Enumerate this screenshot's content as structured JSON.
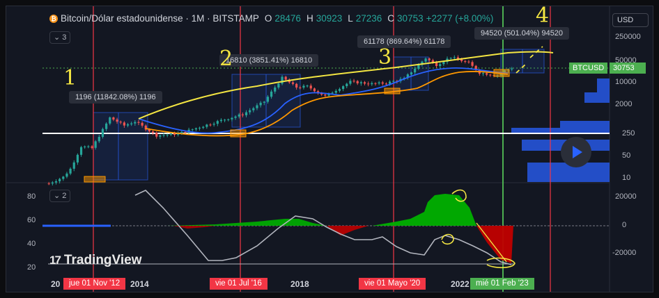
{
  "header": {
    "coin_glyph": "₿",
    "title": "Bitcoin/Dólar estadounidense · 1M · BITSTAMP",
    "o_label": "O",
    "o_val": "28476",
    "h_label": "H",
    "h_val": "30923",
    "l_label": "L",
    "l_val": "27236",
    "c_label": "C",
    "c_val": "30753",
    "change": "+2277 (+8.00%)"
  },
  "currency": "USD",
  "price_panel_collapse": "3",
  "osc_panel_collapse": "2",
  "symbol_tag": {
    "name": "BTCUSD",
    "price": "30753"
  },
  "callouts": [
    "1196 (11842.08%) 1196",
    "16810 (3851.41%) 16810",
    "61178 (869.64%) 61178",
    "94520 (501.04%) 94520"
  ],
  "handwritten_numbers": [
    "1",
    "2",
    "3",
    "4"
  ],
  "time_tags": [
    {
      "label": "jue 01 Nov '12",
      "color": "red"
    },
    {
      "label": "vie 01 Jul '16",
      "color": "red"
    },
    {
      "label": "vie 01 Mayo '20",
      "color": "red"
    },
    {
      "label": "mié 01 Feb '23",
      "color": "green"
    }
  ],
  "year_labels": [
    "20",
    "2014",
    "2018",
    "2022"
  ],
  "logo": {
    "mark": "17",
    "text": "TradingView"
  },
  "chart_data": [
    {
      "type": "line",
      "name": "BTCUSD monthly price (log scale)",
      "y_scale": "log",
      "y_ticks": [
        "250000",
        "50000",
        "10000",
        "2000",
        "250",
        "50",
        "10"
      ],
      "x_ticks": [
        "20",
        "2014",
        "2018",
        "2022"
      ],
      "x": [
        2012.5,
        2012.83,
        2013.0,
        2013.25,
        2013.5,
        2013.83,
        2013.92,
        2014.25,
        2014.5,
        2015.0,
        2015.5,
        2016.0,
        2016.5,
        2017.0,
        2017.5,
        2017.92,
        2018.25,
        2018.5,
        2018.92,
        2019.5,
        2020.0,
        2020.33,
        2020.75,
        2021.25,
        2021.5,
        2021.83,
        2022.25,
        2022.5,
        2022.92,
        2023.08,
        2023.33
      ],
      "close": [
        7,
        11,
        20,
        100,
        90,
        500,
        800,
        450,
        600,
        220,
        250,
        400,
        650,
        1000,
        2500,
        14000,
        7000,
        7500,
        3700,
        10500,
        9000,
        9500,
        13000,
        57000,
        35000,
        61000,
        40000,
        20000,
        16500,
        23000,
        30753
      ],
      "horizontal_line": 280,
      "annotations": [
        "1196 (11842.08%) 1196",
        "16810 (3851.41%) 16810",
        "61178 (869.64%) 61178",
        "94520 (501.04%) 94520"
      ],
      "colors": {
        "up": "#26a69a",
        "down": "#ef5350",
        "blue_ma": "#2962ff",
        "orange_ma": "#ff9800",
        "yellow_trend": "#f4e642"
      }
    },
    {
      "type": "area",
      "name": "oscillator",
      "y_ticks_left": [
        "80",
        "60",
        "40",
        "20"
      ],
      "y_ticks_right": [
        "20000",
        "0",
        "-20000"
      ],
      "zero_value": 0,
      "bars_x": [
        2015.5,
        2016.5,
        2017.5,
        2018.5,
        2019.0,
        2019.5,
        2020.5,
        2021.0,
        2021.5,
        2021.9,
        2022.2,
        2022.5,
        2022.9,
        2023.25
      ],
      "bars_values": [
        500,
        1000,
        2500,
        3000,
        -3000,
        -6000,
        1500,
        8000,
        20000,
        22000,
        -2000,
        -15000,
        -25000,
        -10000
      ],
      "line_left_scale": [
        85,
        60,
        30,
        26,
        35,
        60,
        52,
        40,
        63,
        55,
        45,
        28,
        55,
        45,
        22
      ],
      "colors": {
        "positive": "#00b000",
        "negative": "#c00000"
      }
    }
  ]
}
